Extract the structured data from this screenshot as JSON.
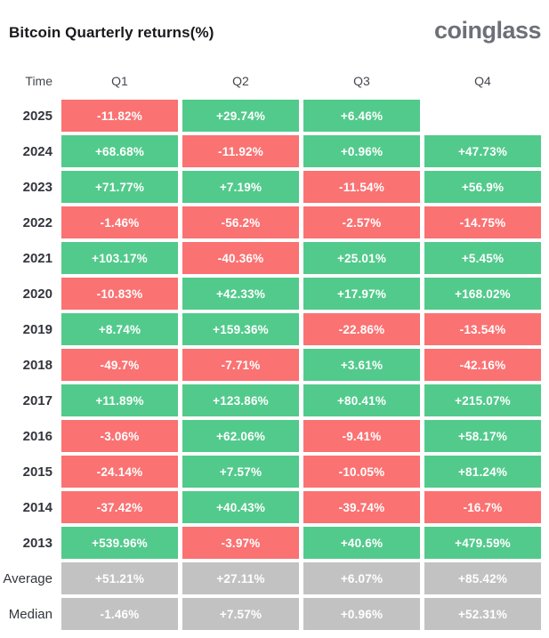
{
  "header": {
    "title": "Bitcoin Quarterly returns(%)",
    "logo_text": "coinglass"
  },
  "colors": {
    "positive": "#52ca8c",
    "negative": "#fa7272",
    "summary": "#c2c2c2",
    "title_text": "#17191c",
    "logo_text": "#6d7078",
    "row_label_text": "#33363d",
    "column_header_text": "#45484f",
    "cell_text": "#ffffff"
  },
  "table": {
    "time_label": "Time",
    "quarter_headers": [
      "Q1",
      "Q2",
      "Q3",
      "Q4"
    ],
    "rows": [
      {
        "label": "2025",
        "kind": "year",
        "cells": [
          "-11.82%",
          "+29.74%",
          "+6.46%",
          null
        ]
      },
      {
        "label": "2024",
        "kind": "year",
        "cells": [
          "+68.68%",
          "-11.92%",
          "+0.96%",
          "+47.73%"
        ]
      },
      {
        "label": "2023",
        "kind": "year",
        "cells": [
          "+71.77%",
          "+7.19%",
          "-11.54%",
          "+56.9%"
        ]
      },
      {
        "label": "2022",
        "kind": "year",
        "cells": [
          "-1.46%",
          "-56.2%",
          "-2.57%",
          "-14.75%"
        ]
      },
      {
        "label": "2021",
        "kind": "year",
        "cells": [
          "+103.17%",
          "-40.36%",
          "+25.01%",
          "+5.45%"
        ]
      },
      {
        "label": "2020",
        "kind": "year",
        "cells": [
          "-10.83%",
          "+42.33%",
          "+17.97%",
          "+168.02%"
        ]
      },
      {
        "label": "2019",
        "kind": "year",
        "cells": [
          "+8.74%",
          "+159.36%",
          "-22.86%",
          "-13.54%"
        ]
      },
      {
        "label": "2018",
        "kind": "year",
        "cells": [
          "-49.7%",
          "-7.71%",
          "+3.61%",
          "-42.16%"
        ]
      },
      {
        "label": "2017",
        "kind": "year",
        "cells": [
          "+11.89%",
          "+123.86%",
          "+80.41%",
          "+215.07%"
        ]
      },
      {
        "label": "2016",
        "kind": "year",
        "cells": [
          "-3.06%",
          "+62.06%",
          "-9.41%",
          "+58.17%"
        ]
      },
      {
        "label": "2015",
        "kind": "year",
        "cells": [
          "-24.14%",
          "+7.57%",
          "-10.05%",
          "+81.24%"
        ]
      },
      {
        "label": "2014",
        "kind": "year",
        "cells": [
          "-37.42%",
          "+40.43%",
          "-39.74%",
          "-16.7%"
        ]
      },
      {
        "label": "2013",
        "kind": "year",
        "cells": [
          "+539.96%",
          "-3.97%",
          "+40.6%",
          "+479.59%"
        ]
      },
      {
        "label": "Average",
        "kind": "summary",
        "cells": [
          "+51.21%",
          "+27.11%",
          "+6.07%",
          "+85.42%"
        ]
      },
      {
        "label": "Median",
        "kind": "summary",
        "cells": [
          "-1.46%",
          "+7.57%",
          "+0.96%",
          "+52.31%"
        ]
      }
    ]
  },
  "chart_data": {
    "type": "heatmap",
    "title": "Bitcoin Quarterly returns(%)",
    "columns": [
      "Q1",
      "Q2",
      "Q3",
      "Q4"
    ],
    "row_categories": [
      "2025",
      "2024",
      "2023",
      "2022",
      "2021",
      "2020",
      "2019",
      "2018",
      "2017",
      "2016",
      "2015",
      "2014",
      "2013",
      "Average",
      "Median"
    ],
    "values_pct": [
      [
        -11.82,
        29.74,
        6.46,
        null
      ],
      [
        68.68,
        -11.92,
        0.96,
        47.73
      ],
      [
        71.77,
        7.19,
        -11.54,
        56.9
      ],
      [
        -1.46,
        -56.2,
        -2.57,
        -14.75
      ],
      [
        103.17,
        -40.36,
        25.01,
        5.45
      ],
      [
        -10.83,
        42.33,
        17.97,
        168.02
      ],
      [
        8.74,
        159.36,
        -22.86,
        -13.54
      ],
      [
        -49.7,
        -7.71,
        3.61,
        -42.16
      ],
      [
        11.89,
        123.86,
        80.41,
        215.07
      ],
      [
        -3.06,
        62.06,
        -9.41,
        58.17
      ],
      [
        -24.14,
        7.57,
        -10.05,
        81.24
      ],
      [
        -37.42,
        40.43,
        -39.74,
        -16.7
      ],
      [
        539.96,
        -3.97,
        40.6,
        479.59
      ],
      [
        51.21,
        27.11,
        6.07,
        85.42
      ],
      [
        -1.46,
        7.57,
        0.96,
        52.31
      ]
    ],
    "color_rule": "green = positive return, red = negative return, gray = Average/Median summary rows, blank = no data yet",
    "legend": "none",
    "grid": "cells separated by white gaps"
  }
}
